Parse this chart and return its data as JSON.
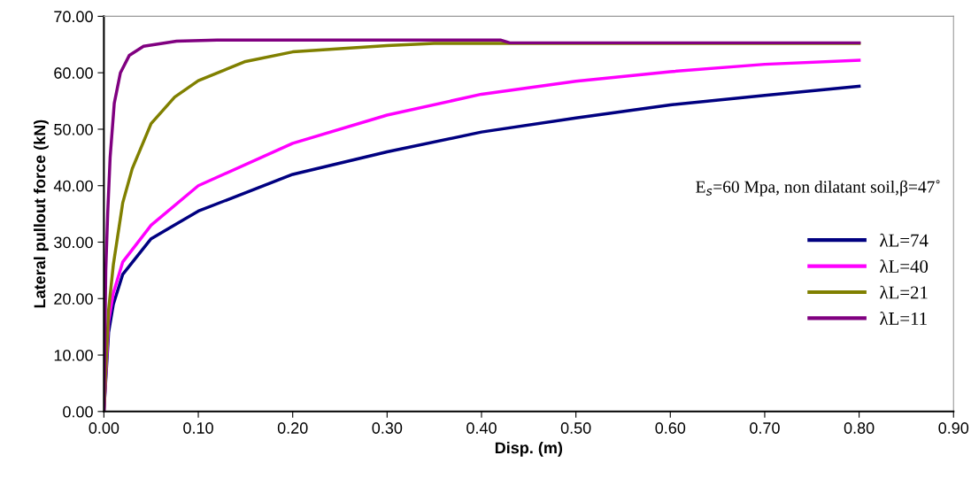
{
  "chart_data": {
    "type": "line",
    "xlabel": "Disp. (m)",
    "ylabel": "Lateral pullout force (kN)",
    "annotations": [
      "E$_{s}$=60 Mpa, non dilatant soil,β=47˚"
    ],
    "xlim": [
      0,
      0.9
    ],
    "ylim": [
      0,
      70
    ],
    "xticks": [
      {
        "value": 0,
        "label": "0.00"
      },
      {
        "value": 0.1,
        "label": "0.10"
      },
      {
        "value": 0.2,
        "label": "0.20"
      },
      {
        "value": 0.3,
        "label": "0.30"
      },
      {
        "value": 0.4,
        "label": "0.40"
      },
      {
        "value": 0.5,
        "label": "0.50"
      },
      {
        "value": 0.6,
        "label": "0.60"
      },
      {
        "value": 0.7,
        "label": "0.70"
      },
      {
        "value": 0.8,
        "label": "0.80"
      },
      {
        "value": 0.9,
        "label": "0.90"
      }
    ],
    "yticks": [
      {
        "value": 0,
        "label": "0.00"
      },
      {
        "value": 10,
        "label": "10.00"
      },
      {
        "value": 20,
        "label": "20.00"
      },
      {
        "value": 30,
        "label": "30.00"
      },
      {
        "value": 40,
        "label": "40.00"
      },
      {
        "value": 50,
        "label": "50.00"
      },
      {
        "value": 60,
        "label": "60.00"
      },
      {
        "value": 70,
        "label": "70.00"
      }
    ],
    "grid": false,
    "legend": "right",
    "marker": "none",
    "line_style": "solid",
    "series": [
      {
        "name": "λL=74",
        "color": "#000080",
        "x": [
          0,
          0.005,
          0.01,
          0.02,
          0.05,
          0.1,
          0.2,
          0.3,
          0.4,
          0.5,
          0.6,
          0.7,
          0.8
        ],
        "values": [
          0,
          14,
          19,
          24.3,
          30.6,
          35.5,
          42,
          46,
          49.5,
          52,
          54.3,
          56,
          57.6
        ]
      },
      {
        "name": "λL=40",
        "color": "#ff00ff",
        "x": [
          0,
          0.005,
          0.01,
          0.02,
          0.05,
          0.1,
          0.2,
          0.3,
          0.4,
          0.5,
          0.6,
          0.7,
          0.8
        ],
        "values": [
          0,
          16,
          21,
          26.5,
          33,
          40,
          47.5,
          52.5,
          56.2,
          58.5,
          60.2,
          61.5,
          62.2
        ]
      },
      {
        "name": "λL=21",
        "color": "#808000",
        "x": [
          0,
          0.005,
          0.01,
          0.02,
          0.03,
          0.05,
          0.075,
          0.1,
          0.15,
          0.2,
          0.3,
          0.35,
          0.8
        ],
        "values": [
          0,
          18,
          26,
          37,
          43,
          51,
          55.7,
          58.6,
          62,
          63.7,
          64.8,
          65.2,
          65.2
        ]
      },
      {
        "name": "λL=11",
        "color": "#800080",
        "x": [
          0,
          0.002,
          0.004,
          0.0066,
          0.011,
          0.0175,
          0.027,
          0.042,
          0.077,
          0.12,
          0.42,
          0.43,
          0.8
        ],
        "values": [
          0,
          25,
          35,
          45,
          54.6,
          60,
          63.1,
          64.7,
          65.6,
          65.8,
          65.8,
          65.3,
          65.3
        ]
      }
    ]
  }
}
